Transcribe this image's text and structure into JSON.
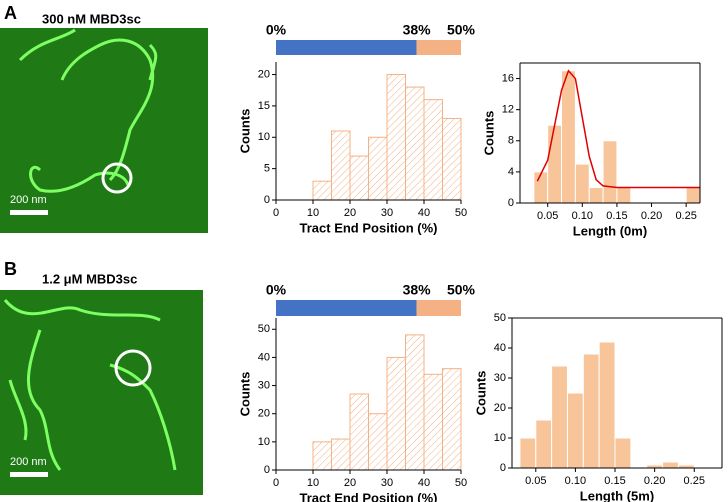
{
  "panels": [
    {
      "label": "A",
      "image_title": "300 nM MBD3sc",
      "scale_bar": "200 nm"
    },
    {
      "label": "B",
      "image_title": "1.2 μM MBD3sc",
      "scale_bar": "200 nm"
    }
  ],
  "chart_data": [
    {
      "type": "histogram",
      "x_label": "Tract End Position (%)",
      "y_label": "Counts",
      "bins": [
        10,
        15,
        20,
        25,
        30,
        35,
        40,
        45,
        50
      ],
      "counts": [
        3,
        11,
        7,
        10,
        20,
        18,
        16,
        13
      ],
      "color": "#f4b183",
      "hatch": true,
      "frame": false,
      "xlim": [
        0,
        50
      ],
      "xticks": [
        0,
        10,
        20,
        30,
        40,
        50
      ],
      "ylim": [
        0,
        22
      ],
      "yticks": [
        0,
        5,
        10,
        15,
        20
      ],
      "range_bar": {
        "values": [
          0,
          38,
          50
        ],
        "value_labels": [
          "0%",
          "38%",
          "50%"
        ],
        "colors": [
          "#4472c4",
          "#f4b183"
        ]
      }
    },
    {
      "type": "histogram",
      "x_label": "Length (0m)",
      "y_label": "Counts",
      "bins": [
        0.03,
        0.05,
        0.07,
        0.09,
        0.11,
        0.13,
        0.15,
        0.17,
        0.19,
        0.21,
        0.23,
        0.25,
        0.27
      ],
      "counts": [
        4,
        10,
        17,
        5,
        2,
        8,
        2,
        0,
        0,
        0,
        0,
        2
      ],
      "color": "#f8c49a",
      "hatch": false,
      "frame": true,
      "xlim": [
        0.01,
        0.27
      ],
      "xticks": [
        0.05,
        {
          "value": 0.1,
          "label": "0.10"
        },
        0.15,
        {
          "value": 0.2,
          "label": "0.20"
        },
        0.25
      ],
      "ylim": [
        0,
        18
      ],
      "yticks": [
        0,
        4,
        8,
        12,
        16
      ],
      "fit": {
        "color": "#e00000",
        "x": [
          0.035,
          0.05,
          0.06,
          0.07,
          0.08,
          0.09,
          0.1,
          0.11,
          0.12,
          0.13,
          0.15,
          0.27
        ],
        "values": [
          2.8,
          5.5,
          10,
          14.5,
          17,
          16,
          11,
          6,
          3,
          2.2,
          2,
          2
        ]
      }
    },
    {
      "type": "histogram",
      "x_label": "Tract End Position (%)",
      "y_label": "Counts",
      "bins": [
        10,
        15,
        20,
        25,
        30,
        35,
        40,
        45,
        50
      ],
      "counts": [
        10,
        11,
        27,
        20,
        40,
        48,
        34,
        36
      ],
      "color": "#f4b183",
      "hatch": true,
      "frame": false,
      "xlim": [
        0,
        50
      ],
      "xticks": [
        0,
        10,
        20,
        30,
        40,
        50
      ],
      "ylim": [
        0,
        54
      ],
      "yticks": [
        0,
        10,
        20,
        30,
        40,
        50
      ],
      "range_bar": {
        "values": [
          0,
          38,
          50
        ],
        "value_labels": [
          "0%",
          "38%",
          "50%"
        ],
        "colors": [
          "#4472c4",
          "#f4b183"
        ]
      }
    },
    {
      "type": "histogram",
      "x_label": "Length (5m)",
      "y_label": "Counts",
      "bins": [
        0.03,
        0.05,
        0.07,
        0.09,
        0.11,
        0.13,
        0.15,
        0.17,
        0.19,
        0.21,
        0.23,
        0.25
      ],
      "counts": [
        10,
        16,
        34,
        25,
        38,
        42,
        10,
        0,
        1,
        2,
        1
      ],
      "color": "#f8c49a",
      "hatch": false,
      "frame": true,
      "xlim": [
        0.02,
        0.285
      ],
      "xticks": [
        0.05,
        {
          "value": 0.1,
          "label": "0.10"
        },
        0.15,
        {
          "value": 0.2,
          "label": "0.20"
        },
        0.25
      ],
      "ylim": [
        0,
        50
      ],
      "yticks": [
        0,
        10,
        20,
        30,
        40,
        50
      ]
    }
  ]
}
